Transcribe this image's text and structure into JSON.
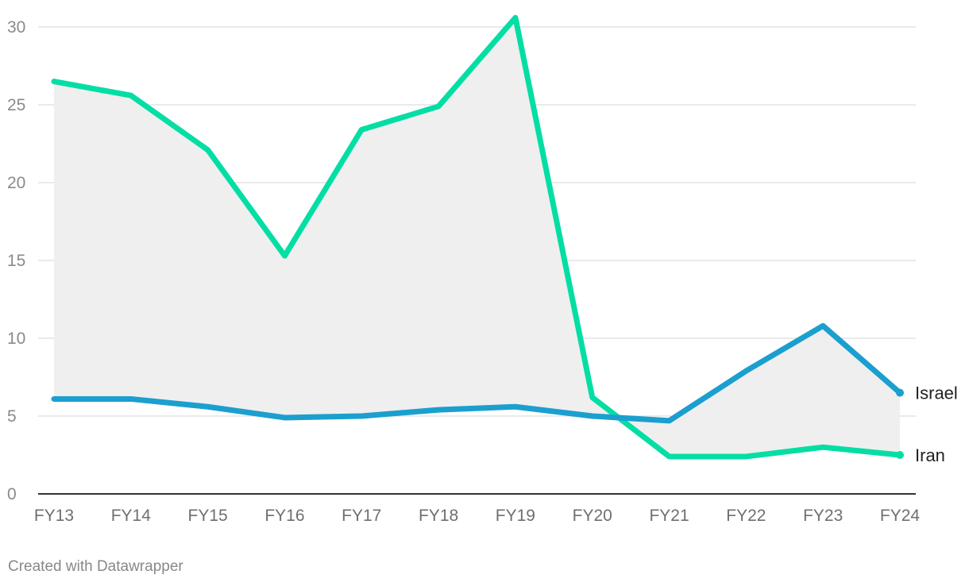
{
  "chart_data": {
    "type": "line",
    "categories": [
      "FY13",
      "FY14",
      "FY15",
      "FY16",
      "FY17",
      "FY18",
      "FY19",
      "FY20",
      "FY21",
      "FY22",
      "FY23",
      "FY24"
    ],
    "series": [
      {
        "name": "Iran",
        "color": "#04dea4",
        "values": [
          26.5,
          25.6,
          22.1,
          15.3,
          23.4,
          24.9,
          30.6,
          6.2,
          2.4,
          2.4,
          3.0,
          2.5
        ]
      },
      {
        "name": "Israel",
        "color": "#1b9fcf",
        "values": [
          6.1,
          6.1,
          5.6,
          4.9,
          5.0,
          5.4,
          5.6,
          5.0,
          4.7,
          7.9,
          10.8,
          6.5
        ]
      }
    ],
    "ylim": [
      0,
      30
    ],
    "yticks": [
      0,
      5,
      10,
      15,
      20,
      25,
      30
    ],
    "grid": true,
    "area_between_series": true,
    "area_color": "#efefef",
    "legend": "direct labels at line ends"
  },
  "credit": "Created with Datawrapper"
}
